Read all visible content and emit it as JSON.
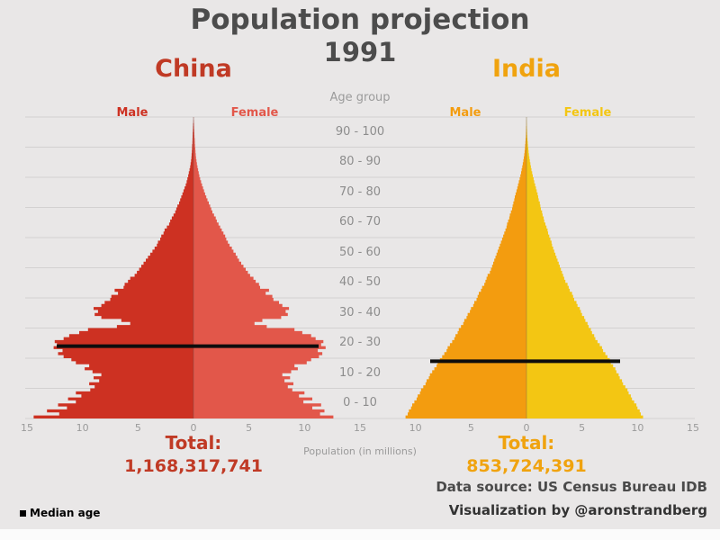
{
  "title": {
    "line1": "Population projection",
    "line2": "1991"
  },
  "center_axis": {
    "label": "Age group",
    "age_groups": [
      "90 - 100",
      "80 - 90",
      "70 - 80",
      "60 - 70",
      "50 - 60",
      "40 - 50",
      "30 - 40",
      "20 - 30",
      "10 - 20",
      "0 - 10"
    ]
  },
  "x_axis": {
    "ticks": [
      15,
      10,
      5,
      0,
      5,
      10,
      15
    ],
    "label": "Population (in millions)"
  },
  "legend": {
    "median_age": "Median age"
  },
  "footer": {
    "source": "Data source: US Census Bureau IDB",
    "credit": "Visualization by @aronstrandberg"
  },
  "chart_data": {
    "type": "population_pyramid_pair",
    "year": "1991",
    "age_axis": {
      "min": 0,
      "max": 100,
      "group_size": 10
    },
    "x_range_millions": [
      0,
      15
    ],
    "grid": true,
    "countries": [
      {
        "name": "China",
        "total_label": "Total:",
        "total": "1,168,317,741",
        "male_label": "Male",
        "female_label": "Female",
        "colors": {
          "male": "#cd3122",
          "female": "#e2574a",
          "accent": "#c03a25"
        },
        "median_age_estimate": 24,
        "male_by_age_millions": [
          14.4,
          12.1,
          13.2,
          11.4,
          12.2,
          10.6,
          11.3,
          10.1,
          10.6,
          9.3,
          8.9,
          9.4,
          8.5,
          9.0,
          8.3,
          9.1,
          9.8,
          9.4,
          10.6,
          11.0,
          11.7,
          12.2,
          11.8,
          12.6,
          12.3,
          12.5,
          11.7,
          11.2,
          10.3,
          9.5,
          6.9,
          5.7,
          6.5,
          8.3,
          8.9,
          8.6,
          9.0,
          8.3,
          8.0,
          7.5,
          7.4,
          6.8,
          7.1,
          6.3,
          6.2,
          5.9,
          5.7,
          5.3,
          5.1,
          4.9,
          4.7,
          4.5,
          4.3,
          4.1,
          3.9,
          3.7,
          3.5,
          3.3,
          3.2,
          3.0,
          2.9,
          2.7,
          2.6,
          2.4,
          2.2,
          2.1,
          1.95,
          1.8,
          1.65,
          1.55,
          1.45,
          1.3,
          1.2,
          1.1,
          1.0,
          0.9,
          0.8,
          0.7,
          0.62,
          0.55,
          0.48,
          0.42,
          0.36,
          0.3,
          0.26,
          0.22,
          0.19,
          0.17,
          0.15,
          0.13,
          0.12,
          0.1,
          0.09,
          0.08,
          0.07,
          0.06,
          0.05,
          0.04,
          0.02,
          0.01
        ],
        "female_by_age_millions": [
          12.6,
          11.4,
          11.8,
          10.7,
          11.5,
          9.9,
          10.7,
          9.5,
          10.0,
          8.9,
          8.5,
          9.0,
          8.2,
          8.7,
          8.0,
          8.8,
          9.4,
          9.1,
          10.2,
          10.6,
          11.3,
          11.6,
          11.2,
          11.9,
          11.5,
          11.7,
          11.0,
          10.6,
          9.8,
          9.1,
          6.6,
          5.5,
          6.2,
          7.9,
          8.5,
          8.3,
          8.6,
          8.0,
          7.7,
          7.2,
          7.1,
          6.5,
          6.8,
          6.0,
          5.9,
          5.6,
          5.4,
          5.1,
          4.9,
          4.7,
          4.5,
          4.3,
          4.1,
          3.95,
          3.8,
          3.6,
          3.45,
          3.25,
          3.1,
          2.95,
          2.85,
          2.7,
          2.55,
          2.4,
          2.25,
          2.1,
          2.0,
          1.85,
          1.7,
          1.6,
          1.5,
          1.38,
          1.26,
          1.15,
          1.05,
          0.95,
          0.86,
          0.77,
          0.68,
          0.6,
          0.53,
          0.47,
          0.41,
          0.36,
          0.31,
          0.27,
          0.23,
          0.2,
          0.18,
          0.16,
          0.14,
          0.12,
          0.11,
          0.09,
          0.08,
          0.07,
          0.06,
          0.05,
          0.03,
          0.015
        ]
      },
      {
        "name": "India",
        "total_label": "Total:",
        "total": "853,724,391",
        "male_label": "Male",
        "female_label": "Female",
        "colors": {
          "male": "#f39c0f",
          "female": "#f3c613",
          "accent": "#f0a30f"
        },
        "median_age_estimate": 19,
        "male_by_age_millions": [
          10.9,
          10.7,
          10.6,
          10.4,
          10.3,
          10.1,
          9.9,
          9.8,
          9.6,
          9.5,
          9.3,
          9.1,
          9.0,
          8.8,
          8.7,
          8.5,
          8.3,
          8.1,
          8.0,
          7.8,
          7.6,
          7.4,
          7.2,
          7.1,
          6.9,
          6.7,
          6.5,
          6.4,
          6.2,
          6.1,
          5.9,
          5.7,
          5.6,
          5.4,
          5.3,
          5.1,
          5.0,
          4.8,
          4.7,
          4.5,
          4.4,
          4.3,
          4.1,
          4.0,
          3.8,
          3.7,
          3.6,
          3.5,
          3.3,
          3.2,
          3.1,
          3.0,
          2.9,
          2.8,
          2.7,
          2.6,
          2.5,
          2.4,
          2.3,
          2.2,
          2.1,
          2.0,
          1.9,
          1.8,
          1.75,
          1.65,
          1.55,
          1.5,
          1.4,
          1.3,
          1.25,
          1.18,
          1.1,
          1.05,
          0.98,
          0.9,
          0.83,
          0.76,
          0.69,
          0.62,
          0.55,
          0.49,
          0.44,
          0.38,
          0.33,
          0.28,
          0.24,
          0.2,
          0.17,
          0.14,
          0.12,
          0.1,
          0.08,
          0.06,
          0.05,
          0.04,
          0.03,
          0.02,
          0.015,
          0.01
        ],
        "female_by_age_millions": [
          10.5,
          10.3,
          10.2,
          10.0,
          9.9,
          9.7,
          9.5,
          9.4,
          9.2,
          9.1,
          8.9,
          8.7,
          8.6,
          8.4,
          8.3,
          8.1,
          8.0,
          7.8,
          7.6,
          7.5,
          7.3,
          7.1,
          6.9,
          6.8,
          6.6,
          6.4,
          6.2,
          6.1,
          5.9,
          5.8,
          5.6,
          5.5,
          5.3,
          5.2,
          5.0,
          4.9,
          4.8,
          4.6,
          4.5,
          4.3,
          4.2,
          4.1,
          3.9,
          3.8,
          3.7,
          3.5,
          3.4,
          3.3,
          3.2,
          3.1,
          3.0,
          2.9,
          2.8,
          2.7,
          2.6,
          2.5,
          2.4,
          2.3,
          2.25,
          2.15,
          2.05,
          1.95,
          1.9,
          1.8,
          1.7,
          1.6,
          1.55,
          1.45,
          1.4,
          1.3,
          1.25,
          1.2,
          1.1,
          1.05,
          1.0,
          0.92,
          0.85,
          0.78,
          0.7,
          0.64,
          0.57,
          0.51,
          0.45,
          0.4,
          0.35,
          0.3,
          0.26,
          0.22,
          0.19,
          0.16,
          0.13,
          0.11,
          0.09,
          0.07,
          0.055,
          0.045,
          0.035,
          0.025,
          0.018,
          0.012
        ]
      }
    ],
    "median_age_marker_color": "#0d0d0d",
    "background_color": "#e9e7e7",
    "gridline_color": "#d3d1d1"
  }
}
